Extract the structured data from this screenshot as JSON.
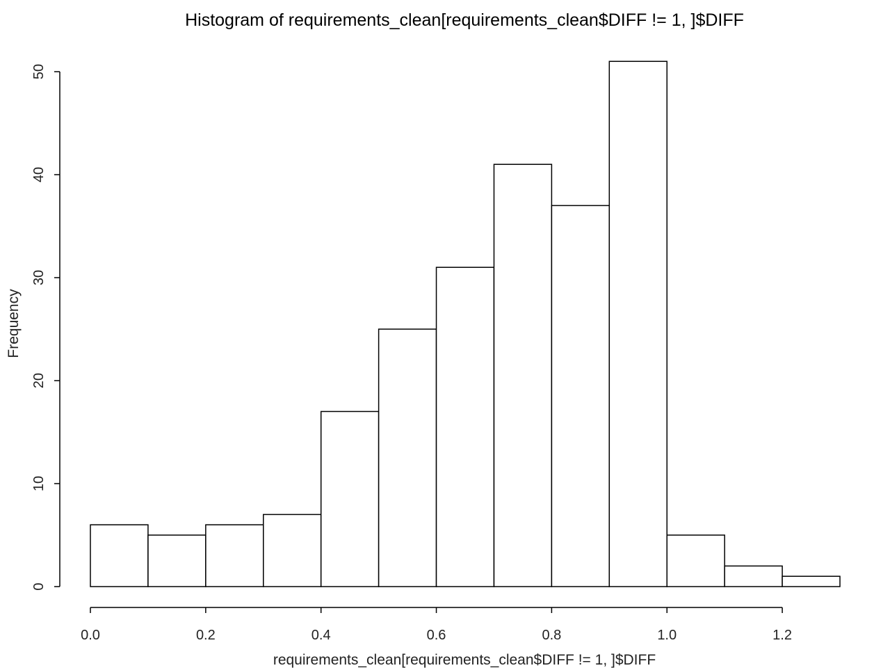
{
  "chart_data": {
    "type": "bar",
    "subtype": "histogram",
    "title": "Histogram of requirements_clean[requirements_clean$DIFF != 1, ]$DIFF",
    "xlabel": "requirements_clean[requirements_clean$DIFF != 1, ]$DIFF",
    "ylabel": "Frequency",
    "bins": [
      {
        "from": 0.0,
        "to": 0.1,
        "count": 6
      },
      {
        "from": 0.1,
        "to": 0.2,
        "count": 5
      },
      {
        "from": 0.2,
        "to": 0.3,
        "count": 6
      },
      {
        "from": 0.3,
        "to": 0.4,
        "count": 7
      },
      {
        "from": 0.4,
        "to": 0.5,
        "count": 17
      },
      {
        "from": 0.5,
        "to": 0.6,
        "count": 25
      },
      {
        "from": 0.6,
        "to": 0.7,
        "count": 31
      },
      {
        "from": 0.7,
        "to": 0.8,
        "count": 41
      },
      {
        "from": 0.8,
        "to": 0.9,
        "count": 37
      },
      {
        "from": 0.9,
        "to": 1.0,
        "count": 51
      },
      {
        "from": 1.0,
        "to": 1.1,
        "count": 5
      },
      {
        "from": 1.1,
        "to": 1.2,
        "count": 2
      },
      {
        "from": 1.2,
        "to": 1.3,
        "count": 1
      }
    ],
    "xticks": [
      "0.0",
      "0.2",
      "0.4",
      "0.6",
      "0.8",
      "1.0",
      "1.2"
    ],
    "yticks": [
      "0",
      "10",
      "20",
      "30",
      "40",
      "50"
    ],
    "xlim": [
      0,
      1.3
    ],
    "ylim": [
      0,
      50
    ],
    "grid": false,
    "legend": "none"
  }
}
